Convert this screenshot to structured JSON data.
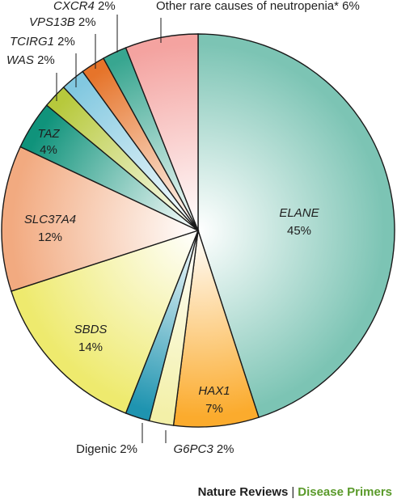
{
  "chart_data": {
    "type": "pie",
    "slices": [
      {
        "label": "ELANE",
        "italic": true,
        "pct": "45%",
        "value": 45,
        "color": "#7cc4b4"
      },
      {
        "label": "HAX1",
        "italic": true,
        "pct": "7%",
        "value": 7,
        "color": "#fbab2d"
      },
      {
        "label": "G6PC3",
        "italic": true,
        "pct": "2%",
        "value": 2,
        "color": "#f3f0a8"
      },
      {
        "label": "Digenic",
        "italic": false,
        "pct": "2%",
        "value": 2,
        "color": "#1f94b0"
      },
      {
        "label": "SBDS",
        "italic": true,
        "pct": "14%",
        "value": 14,
        "color": "#eeea6e"
      },
      {
        "label": "SLC37A4",
        "italic": true,
        "pct": "12%",
        "value": 12,
        "color": "#f2aa80"
      },
      {
        "label": "TAZ",
        "italic": true,
        "pct": "4%",
        "value": 4,
        "color": "#10937b"
      },
      {
        "label": "WAS",
        "italic": true,
        "pct": "2%",
        "value": 2,
        "color": "#b7c93c"
      },
      {
        "label": "TCIRG1",
        "italic": true,
        "pct": "2%",
        "value": 2,
        "color": "#82c8e0"
      },
      {
        "label": "VPS13B",
        "italic": true,
        "pct": "2%",
        "value": 2,
        "color": "#e6742a"
      },
      {
        "label": "CXCR4",
        "italic": true,
        "pct": "2%",
        "value": 2,
        "color": "#38a690"
      },
      {
        "label": "Other rare causes of neutropenia*",
        "italic": false,
        "pct": "6%",
        "value": 6,
        "color": "#f4a3a0"
      }
    ]
  },
  "footer": {
    "publisher": "Nature Reviews",
    "separator": "|",
    "series": "Disease Primers"
  }
}
